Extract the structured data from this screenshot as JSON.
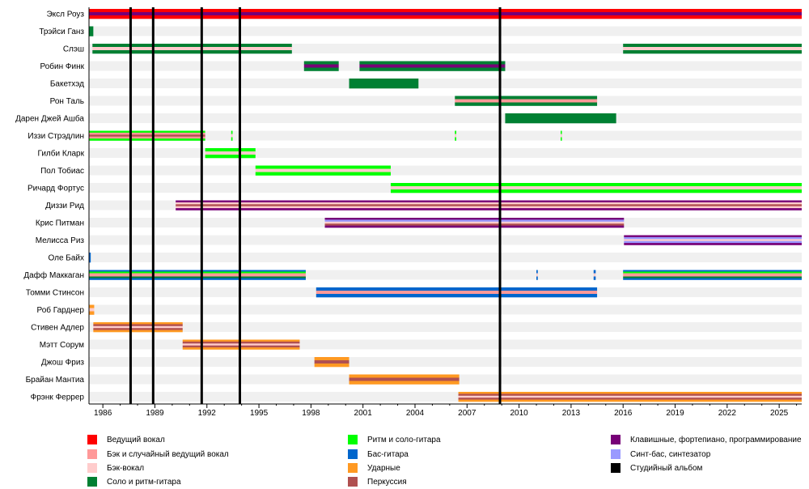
{
  "chart_data": {
    "type": "timeline",
    "xlim": [
      1985.2,
      2026.3
    ],
    "ticks": [
      "1986",
      "1989",
      "1992",
      "1995",
      "1998",
      "2001",
      "2004",
      "2007",
      "2010",
      "2013",
      "2016",
      "2019",
      "2022",
      "2025"
    ],
    "colors": {
      "lead_vocals": "#ff0000",
      "backing_lead": "#ff9999",
      "backing": "#ffcccc",
      "lead_rhythm_guitar": "#008033",
      "rhythm_lead_guitar": "#00ff00",
      "bass": "#0066cc",
      "drums": "#ff9922",
      "percussion": "#b05050",
      "keyboards": "#770077",
      "synth": "#9999ff",
      "album": "#000000"
    },
    "albums": [
      1987.6,
      1988.9,
      1991.7,
      1993.9,
      2008.9
    ],
    "members": [
      {
        "name": "Эксл Роуз",
        "segments": [
          {
            "from": 1985.2,
            "to": 2026.3,
            "roles": [
              "lead_vocals",
              "keyboards",
              "lead_vocals"
            ]
          }
        ]
      },
      {
        "name": "Трэйси Ганз",
        "segments": [
          {
            "from": 1985.2,
            "to": 1985.45,
            "roles": [
              "lead_rhythm_guitar"
            ]
          }
        ]
      },
      {
        "name": "Слэш",
        "segments": [
          {
            "from": 1985.4,
            "to": 1996.9,
            "roles": [
              "lead_rhythm_guitar",
              "backing",
              "lead_rhythm_guitar"
            ]
          },
          {
            "from": 2016.0,
            "to": 2026.3,
            "roles": [
              "lead_rhythm_guitar",
              "backing",
              "lead_rhythm_guitar"
            ]
          }
        ]
      },
      {
        "name": "Робин Финк",
        "segments": [
          {
            "from": 1997.6,
            "to": 1999.6,
            "roles": [
              "lead_rhythm_guitar",
              "keyboards",
              "lead_rhythm_guitar"
            ]
          },
          {
            "from": 2000.8,
            "to": 2009.2,
            "roles": [
              "lead_rhythm_guitar",
              "keyboards",
              "lead_rhythm_guitar"
            ]
          }
        ]
      },
      {
        "name": "Бакетхэд",
        "segments": [
          {
            "from": 2000.2,
            "to": 2004.2,
            "roles": [
              "lead_rhythm_guitar"
            ]
          }
        ]
      },
      {
        "name": "Рон Таль",
        "segments": [
          {
            "from": 2006.3,
            "to": 2014.5,
            "roles": [
              "lead_rhythm_guitar",
              "backing_lead",
              "lead_rhythm_guitar"
            ]
          }
        ]
      },
      {
        "name": "Дарен Джей Ашба",
        "segments": [
          {
            "from": 2009.2,
            "to": 2015.6,
            "roles": [
              "lead_rhythm_guitar"
            ]
          }
        ]
      },
      {
        "name": "Иззи Стрэдлин",
        "segments": [
          {
            "from": 1985.2,
            "to": 1991.9,
            "roles": [
              "rhythm_lead_guitar",
              "backing_lead",
              "percussion",
              "backing_lead",
              "rhythm_lead_guitar"
            ]
          },
          {
            "from": 1993.4,
            "to": 1993.48,
            "roles": [
              "rhythm_lead_guitar",
              "backing",
              "rhythm_lead_guitar"
            ]
          },
          {
            "from": 2006.3,
            "to": 2006.38,
            "roles": [
              "rhythm_lead_guitar",
              "backing",
              "rhythm_lead_guitar"
            ]
          },
          {
            "from": 2012.4,
            "to": 2012.46,
            "roles": [
              "rhythm_lead_guitar",
              "backing",
              "rhythm_lead_guitar"
            ]
          }
        ]
      },
      {
        "name": "Гилби Кларк",
        "segments": [
          {
            "from": 1991.9,
            "to": 1994.8,
            "roles": [
              "rhythm_lead_guitar",
              "backing",
              "rhythm_lead_guitar"
            ]
          }
        ]
      },
      {
        "name": "Пол Тобиас",
        "segments": [
          {
            "from": 1994.8,
            "to": 2002.6,
            "roles": [
              "rhythm_lead_guitar",
              "backing",
              "rhythm_lead_guitar"
            ]
          }
        ]
      },
      {
        "name": "Ричард Фортус",
        "segments": [
          {
            "from": 2002.6,
            "to": 2026.3,
            "roles": [
              "rhythm_lead_guitar",
              "backing",
              "rhythm_lead_guitar"
            ]
          }
        ]
      },
      {
        "name": "Диззи Рид",
        "segments": [
          {
            "from": 1990.2,
            "to": 2026.3,
            "roles": [
              "keyboards",
              "backing",
              "percussion",
              "backing",
              "keyboards"
            ]
          }
        ]
      },
      {
        "name": "Крис Питман",
        "segments": [
          {
            "from": 1998.8,
            "to": 2016.05,
            "roles": [
              "keyboards",
              "synth",
              "backing",
              "percussion",
              "keyboards"
            ]
          }
        ]
      },
      {
        "name": "Мелисса Риз",
        "segments": [
          {
            "from": 2016.05,
            "to": 2026.3,
            "roles": [
              "keyboards",
              "synth",
              "backing",
              "synth",
              "keyboards"
            ]
          }
        ]
      },
      {
        "name": "Оле Байх",
        "segments": [
          {
            "from": 1985.2,
            "to": 1985.3,
            "roles": [
              "bass"
            ]
          }
        ]
      },
      {
        "name": "Дафф Маккаган",
        "segments": [
          {
            "from": 1985.2,
            "to": 1997.7,
            "roles": [
              "bass",
              "rhythm_lead_guitar",
              "backing_lead",
              "backing_lead",
              "lead_rhythm_guitar",
              "bass"
            ]
          },
          {
            "from": 2011.0,
            "to": 2011.08,
            "roles": [
              "bass",
              "backing",
              "bass"
            ]
          },
          {
            "from": 2014.3,
            "to": 2014.42,
            "roles": [
              "bass",
              "backing",
              "bass"
            ]
          },
          {
            "from": 2016.0,
            "to": 2026.3,
            "roles": [
              "bass",
              "rhythm_lead_guitar",
              "backing_lead",
              "backing_lead",
              "lead_rhythm_guitar",
              "bass"
            ]
          }
        ]
      },
      {
        "name": "Томми Стинсон",
        "segments": [
          {
            "from": 1998.3,
            "to": 2014.5,
            "roles": [
              "bass",
              "backing_lead",
              "bass"
            ]
          }
        ]
      },
      {
        "name": "Роб Гарднер",
        "segments": [
          {
            "from": 1985.2,
            "to": 1985.5,
            "roles": [
              "drums",
              "backing",
              "drums"
            ]
          }
        ]
      },
      {
        "name": "Стивен Адлер",
        "segments": [
          {
            "from": 1985.45,
            "to": 1990.6,
            "roles": [
              "drums",
              "percussion",
              "backing",
              "percussion",
              "drums"
            ]
          }
        ]
      },
      {
        "name": "Мэтт Сорум",
        "segments": [
          {
            "from": 1990.6,
            "to": 1997.35,
            "roles": [
              "drums",
              "percussion",
              "backing",
              "percussion",
              "drums"
            ]
          }
        ]
      },
      {
        "name": "Джош Фриз",
        "segments": [
          {
            "from": 1998.2,
            "to": 2000.2,
            "roles": [
              "drums",
              "percussion",
              "drums"
            ]
          }
        ]
      },
      {
        "name": "Брайан Мантиа",
        "segments": [
          {
            "from": 2000.2,
            "to": 2006.55,
            "roles": [
              "drums",
              "percussion",
              "drums"
            ]
          }
        ]
      },
      {
        "name": "Фрэнк Феррер",
        "segments": [
          {
            "from": 2006.5,
            "to": 2026.3,
            "roles": [
              "drums",
              "percussion",
              "backing",
              "percussion",
              "drums"
            ]
          }
        ]
      }
    ],
    "legend": [
      {
        "key": "lead_vocals",
        "label": "Ведущий вокал"
      },
      {
        "key": "backing_lead",
        "label": "Бэк и случайный ведущий вокал"
      },
      {
        "key": "backing",
        "label": "Бэк-вокал"
      },
      {
        "key": "lead_rhythm_guitar",
        "label": "Соло и ритм-гитара"
      },
      {
        "key": "rhythm_lead_guitar",
        "label": "Ритм и соло-гитара"
      },
      {
        "key": "bass",
        "label": "Бас-гитара"
      },
      {
        "key": "drums",
        "label": "Ударные"
      },
      {
        "key": "percussion",
        "label": "Перкуссия"
      },
      {
        "key": "keyboards",
        "label": "Клавишные, фортепиано, программирование"
      },
      {
        "key": "synth",
        "label": "Синт-бас, синтезатор"
      },
      {
        "key": "album",
        "label": "Студийный альбом"
      }
    ]
  }
}
